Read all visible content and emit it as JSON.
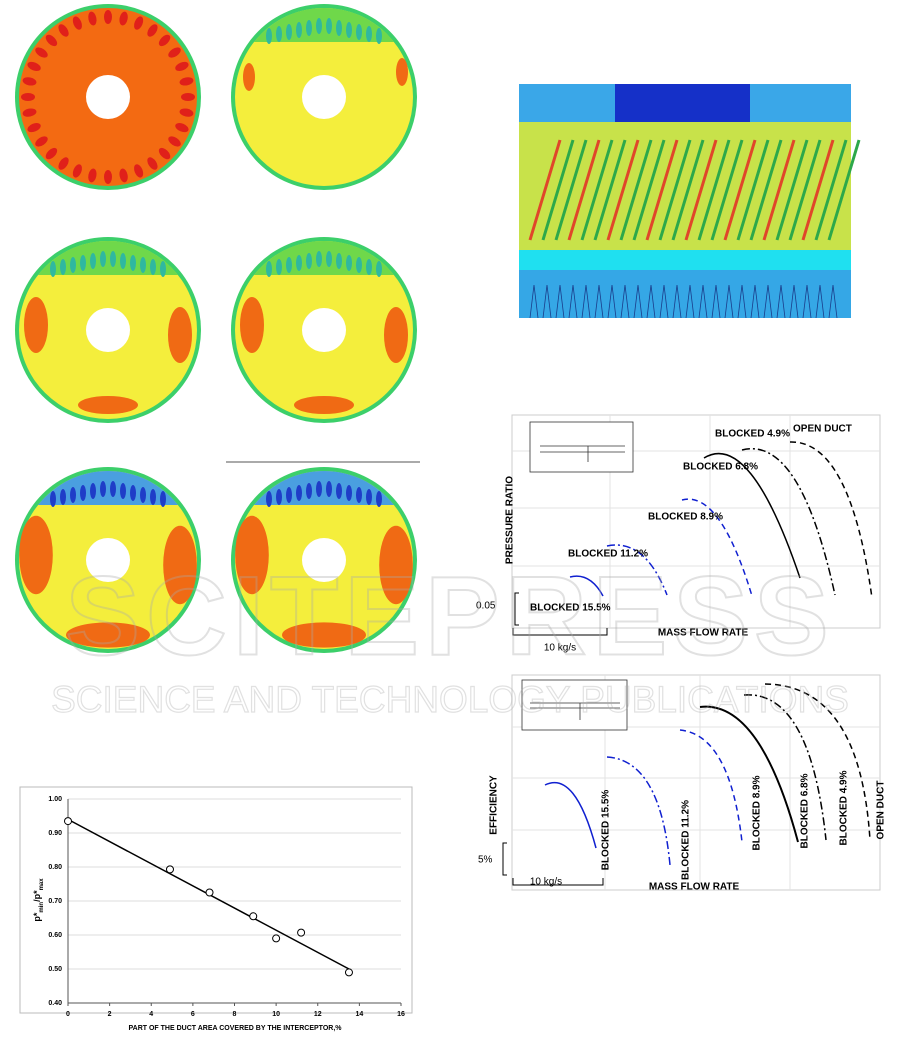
{
  "watermark": {
    "title": "SCITEPRESS",
    "subtitle": "SCIENCE AND TECHNOLOGY PUBLICATIONS"
  },
  "figure_pressure": {
    "y_label": "PRESSURE RATIO",
    "x_label": "MASS FLOW RATE",
    "scale_y": "0.05",
    "scale_x": "10 kg/s",
    "curves": [
      "BLOCKED 4.9%",
      "OPEN DUCT",
      "BLOCKED 6.8%",
      "BLOCKED 8.9%",
      "BLOCKED 11.2%",
      "BLOCKED 15.5%"
    ]
  },
  "figure_efficiency": {
    "y_label": "EFFICIENCY",
    "x_label": "MASS FLOW RATE",
    "scale_y": "5%",
    "scale_x": "10 kg/s",
    "curves": [
      "BLOCKED 15.5%",
      "BLOCKED 11.2%",
      "BLOCKED 8.9%",
      "BLOCKED 6.8%",
      "BLOCKED 4.9%",
      "OPEN DUCT"
    ]
  },
  "chart_data": {
    "type": "scatter",
    "x_label": "PART OF THE DUCT AREA COVERED BY THE INTERCEPTOR,%",
    "y_label": [
      "p*",
      "min",
      "/p*",
      "max"
    ],
    "x": [
      0,
      4.9,
      6.8,
      8.9,
      10,
      11.2,
      13.5
    ],
    "values": [
      0.935,
      0.793,
      0.725,
      0.655,
      0.59,
      0.607,
      0.49
    ],
    "trendline": {
      "x": [
        0,
        13.5
      ],
      "values": [
        0.94,
        0.5
      ]
    },
    "xlim": [
      0,
      16
    ],
    "xticks": [
      0,
      2,
      4,
      6,
      8,
      10,
      12,
      14,
      16
    ],
    "ylim": [
      0.4,
      1.0
    ],
    "yticks": [
      {
        "value": 0.4,
        "label": "0.40"
      },
      {
        "value": 0.5,
        "label": "0.50"
      },
      {
        "value": 0.6,
        "label": "0.60"
      },
      {
        "value": 0.7,
        "label": "0.70"
      },
      {
        "value": 0.8,
        "label": "0.80"
      },
      {
        "value": 0.9,
        "label": "0.90"
      },
      {
        "value": 1.0,
        "label": "1.00"
      }
    ],
    "grid": true
  }
}
